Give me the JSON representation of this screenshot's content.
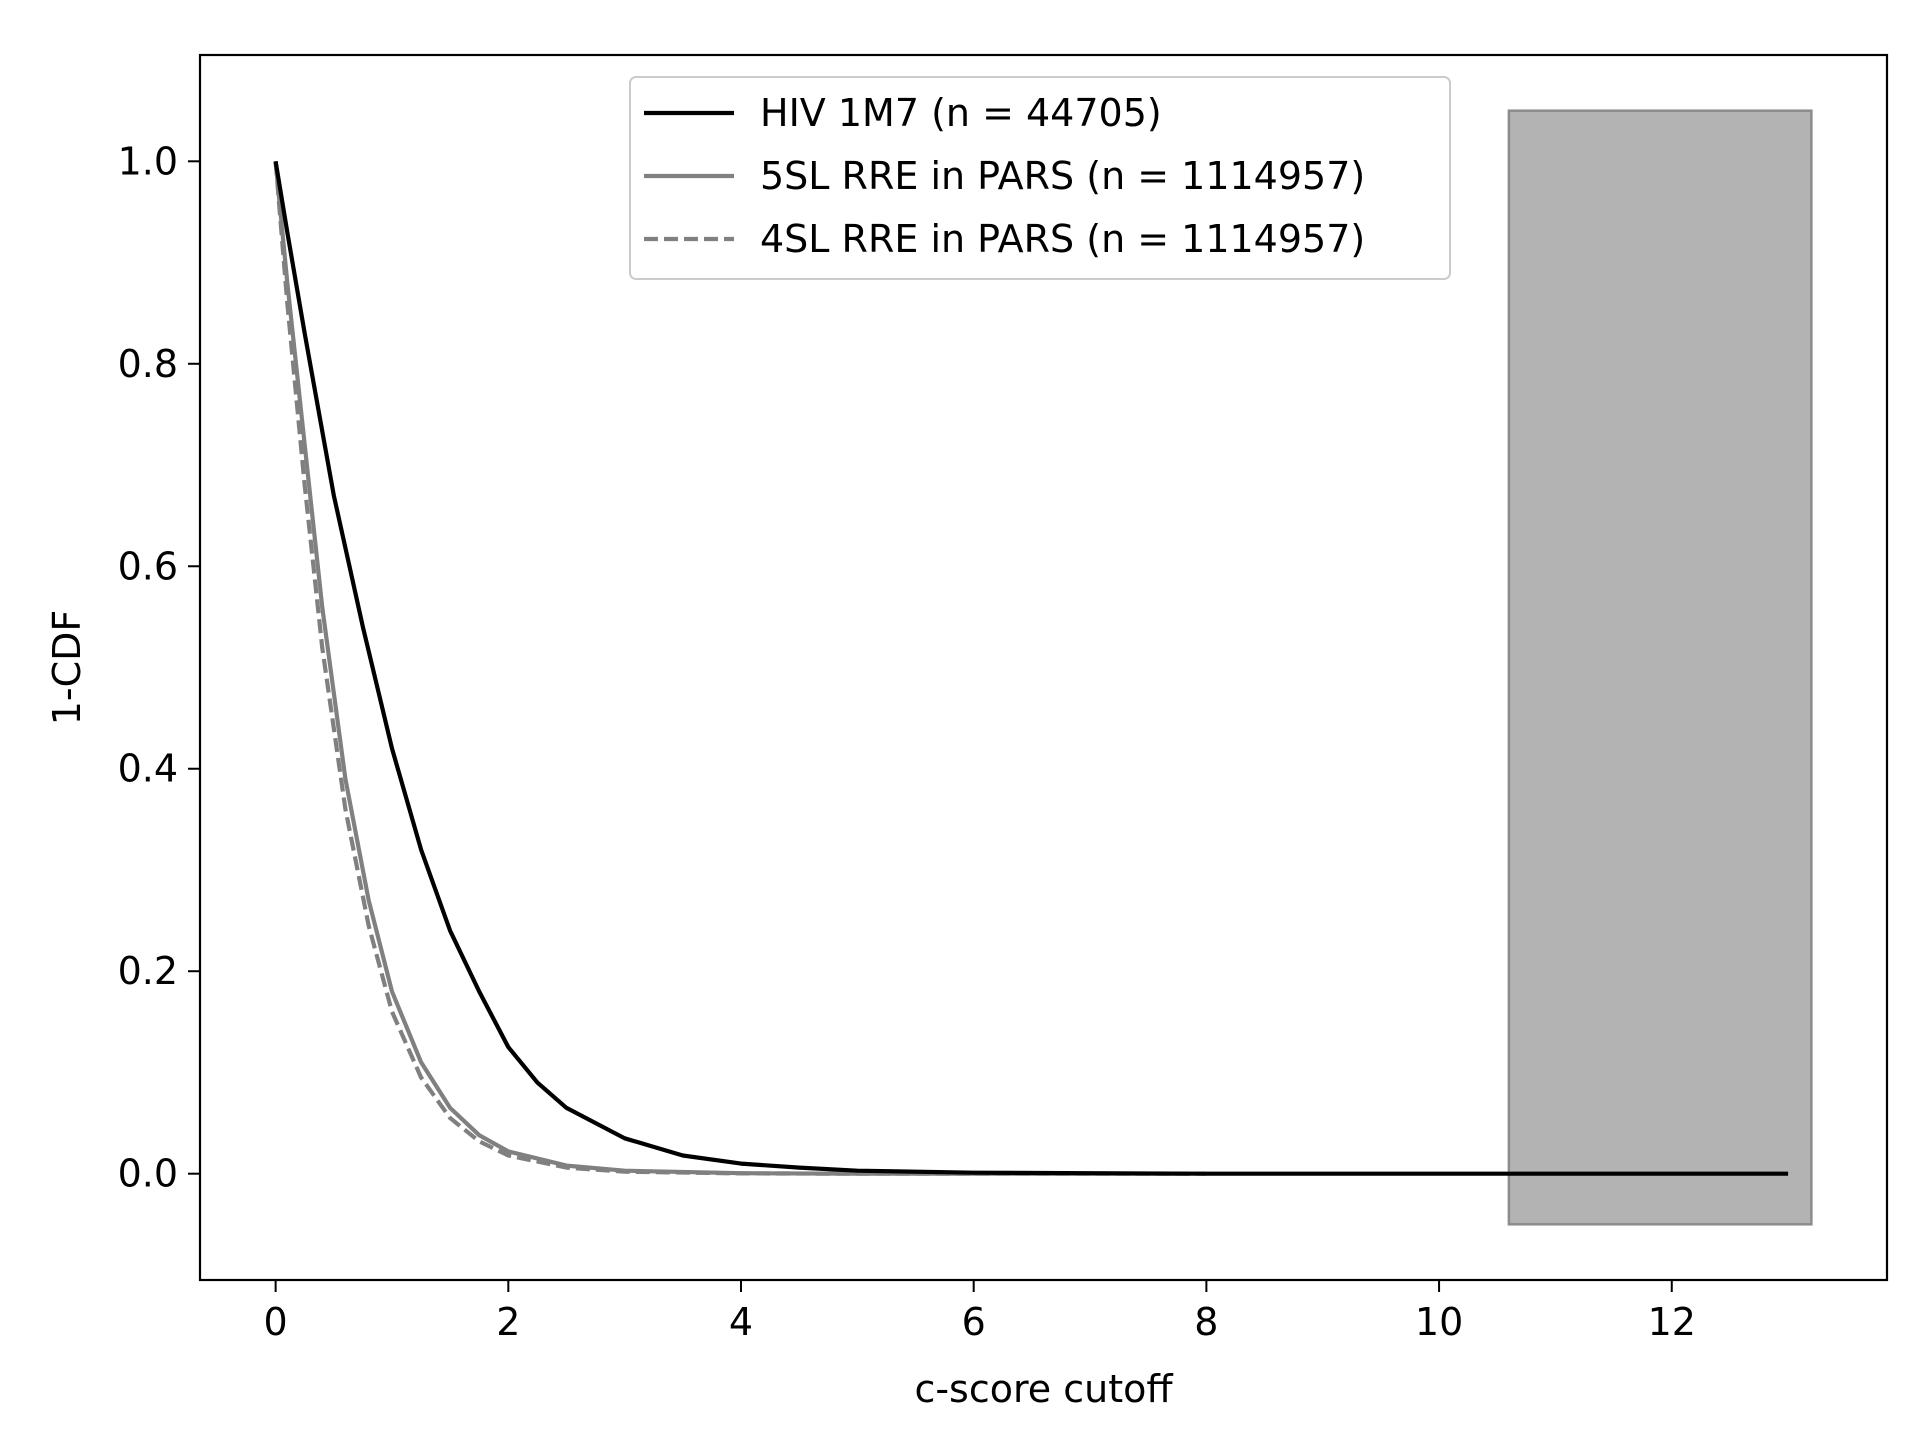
{
  "chart_data": {
    "type": "line",
    "title": "",
    "xlabel": "c-score cutoff",
    "ylabel": "1-CDF",
    "xlim": [
      -0.65,
      13.85
    ],
    "ylim": [
      -0.105,
      1.105
    ],
    "xticks": [
      0,
      2,
      4,
      6,
      8,
      10,
      12
    ],
    "xtick_labels": [
      "0",
      "2",
      "4",
      "6",
      "8",
      "10",
      "12"
    ],
    "yticks": [
      0.0,
      0.2,
      0.4,
      0.6,
      0.8,
      1.0
    ],
    "ytick_labels": [
      "0.0",
      "0.2",
      "0.4",
      "0.6",
      "0.8",
      "1.0"
    ],
    "grid": false,
    "legend_position": "top-center",
    "shaded_region": {
      "x": [
        10.6,
        13.2
      ],
      "y": [
        -0.05,
        1.05
      ],
      "color": "#b3b3b3",
      "edge_color": "#8c8c8c"
    },
    "series": [
      {
        "name": "HIV 1M7 (n = 44705)",
        "color": "#000000",
        "dash": "solid",
        "x": [
          0,
          0.1,
          0.25,
          0.5,
          0.75,
          1.0,
          1.25,
          1.5,
          1.75,
          2.0,
          2.25,
          2.5,
          3.0,
          3.5,
          4.0,
          4.5,
          5.0,
          6.0,
          7.0,
          8.0,
          10.0,
          12.0,
          13.0
        ],
        "y": [
          1.0,
          0.93,
          0.83,
          0.67,
          0.54,
          0.42,
          0.32,
          0.24,
          0.18,
          0.125,
          0.09,
          0.065,
          0.035,
          0.018,
          0.01,
          0.006,
          0.003,
          0.001,
          0.0005,
          0.0,
          0.0,
          0.0,
          0.0
        ]
      },
      {
        "name": "5SL RRE in PARS (n = 1114957)",
        "color": "#808080",
        "dash": "solid",
        "x": [
          0,
          0.1,
          0.25,
          0.4,
          0.6,
          0.8,
          1.0,
          1.25,
          1.5,
          1.75,
          2.0,
          2.5,
          3.0,
          4.0,
          5.0,
          6.0,
          7.0,
          7.85
        ],
        "y": [
          1.0,
          0.88,
          0.72,
          0.56,
          0.39,
          0.27,
          0.18,
          0.11,
          0.065,
          0.038,
          0.022,
          0.008,
          0.003,
          0.0005,
          0.0,
          0.0,
          0.0,
          0.0
        ]
      },
      {
        "name": "4SL RRE in PARS (n = 1114957)",
        "color": "#808080",
        "dash": "dashed",
        "x": [
          0,
          0.1,
          0.25,
          0.4,
          0.6,
          0.8,
          1.0,
          1.25,
          1.5,
          1.75,
          2.0,
          2.5,
          3.0,
          4.0,
          5.0,
          6.0,
          7.0,
          8.0
        ],
        "y": [
          1.0,
          0.86,
          0.68,
          0.52,
          0.36,
          0.245,
          0.16,
          0.095,
          0.055,
          0.032,
          0.018,
          0.006,
          0.002,
          0.0003,
          0.0,
          0.0,
          0.0,
          0.0
        ]
      }
    ]
  }
}
